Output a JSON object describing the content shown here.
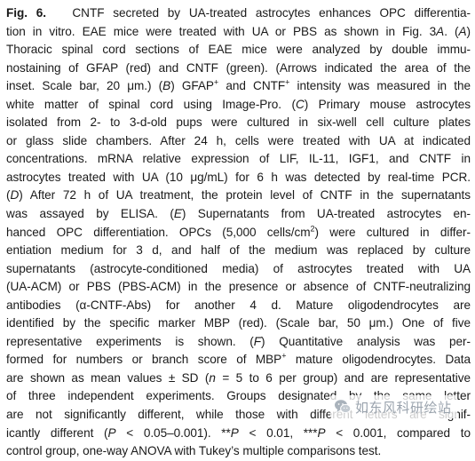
{
  "caption": {
    "lines": [
      "Fig. 6.   CNTF secreted by UA-treated astrocytes enhances OPC differentia-",
      "tion in vitro. EAE mice were treated with UA or PBS as shown in Fig. 3A. (A)",
      "Thoracic spinal cord sections of EAE mice were analyzed by double immu-",
      "nostaining of GFAP (red) and CNTF (green). (Arrows indicated the area of the",
      "inset. Scale bar, 20 μm.) (B) GFAP⁺ and CNTF⁺ intensity was measured in the",
      "white matter of spinal cord using Image-Pro. (C) Primary mouse astrocytes",
      "isolated from 2- to 3-d-old pups were cultured in six-well cell culture plates",
      "or glass slide chambers. After 24 h, cells were treated with UA at indicated",
      "concentrations. mRNA relative expression of LIF, IL-11, IGF1, and CNTF in",
      "astrocytes treated with UA (10 μg/mL) for 6 h was detected by real-time PCR.",
      "(D) After 72 h of UA treatment, the protein level of CNTF in the supernatants",
      "was assayed by ELISA. (E) Supernatants from UA-treated astrocytes en-",
      "hanced OPC differentiation. OPCs (5,000 cells/cm²) were cultured in differ-",
      "entiation medium for 3 d, and half of the medium was replaced by culture",
      "supernatants (astrocyte-conditioned media) of astrocytes treated with UA",
      "(UA-ACM) or PBS (PBS-ACM) in the presence or absence of CNTF-neutralizing",
      "antibodies (α-CNTF-Abs) for another 4 d. Mature oligodendrocytes are",
      "identified by the specific marker MBP (red). (Scale bar, 50 μm.) One of five",
      "representative experiments is shown. (F) Quantitative analysis was per-",
      "formed for numbers or branch score of MBP⁺ mature oligodendrocytes. Data",
      "are shown as mean values ± SD (n = 5 to 6 per group) and are representative",
      "of three independent experiments. Groups designated by the same letter",
      "are not significantly different, while those with different letters are signif-",
      "icantly different (P < 0.05–0.001). **P < 0.01, ***P < 0.001, compared to",
      "control group, one-way ANOVA with Tukey’s multiple comparisons test."
    ]
  },
  "watermark": {
    "text": "如东风科研绘站",
    "icon": "wechat-icon",
    "color": "#9aa3ad"
  }
}
